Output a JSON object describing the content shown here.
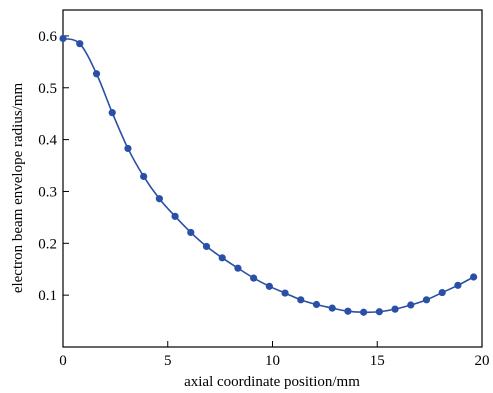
{
  "chart_data": {
    "type": "line",
    "xlabel": "axial coordinate position/mm",
    "ylabel": "electron beam envelope radius/mm",
    "xlim": [
      0,
      20
    ],
    "ylim": [
      0,
      0.65
    ],
    "xticks": [
      0,
      5,
      10,
      15,
      20
    ],
    "yticks": [
      0.1,
      0.2,
      0.3,
      0.4,
      0.5,
      0.6
    ],
    "xtick_labels": [
      "0",
      "5",
      "10",
      "15",
      "20"
    ],
    "ytick_labels": [
      "0.1",
      "0.2",
      "0.3",
      "0.4",
      "0.5",
      "0.6"
    ],
    "grid": false,
    "line_color": "#2a4fa6",
    "marker_color": "#2a4fa6",
    "series": [
      {
        "x": [
          0,
          0.8,
          1.6,
          2.35,
          3.1,
          3.85,
          4.6,
          5.35,
          6.1,
          6.85,
          7.6,
          8.35,
          9.1,
          9.85,
          10.6,
          11.35,
          12.1,
          12.85,
          13.6,
          14.35,
          15.1,
          15.85,
          16.6,
          17.35,
          18.1,
          18.85,
          19.6
        ],
        "y": [
          0.595,
          0.585,
          0.527,
          0.452,
          0.383,
          0.329,
          0.286,
          0.252,
          0.221,
          0.194,
          0.172,
          0.152,
          0.133,
          0.117,
          0.104,
          0.091,
          0.082,
          0.075,
          0.069,
          0.067,
          0.068,
          0.073,
          0.081,
          0.091,
          0.105,
          0.119,
          0.135
        ]
      }
    ]
  }
}
